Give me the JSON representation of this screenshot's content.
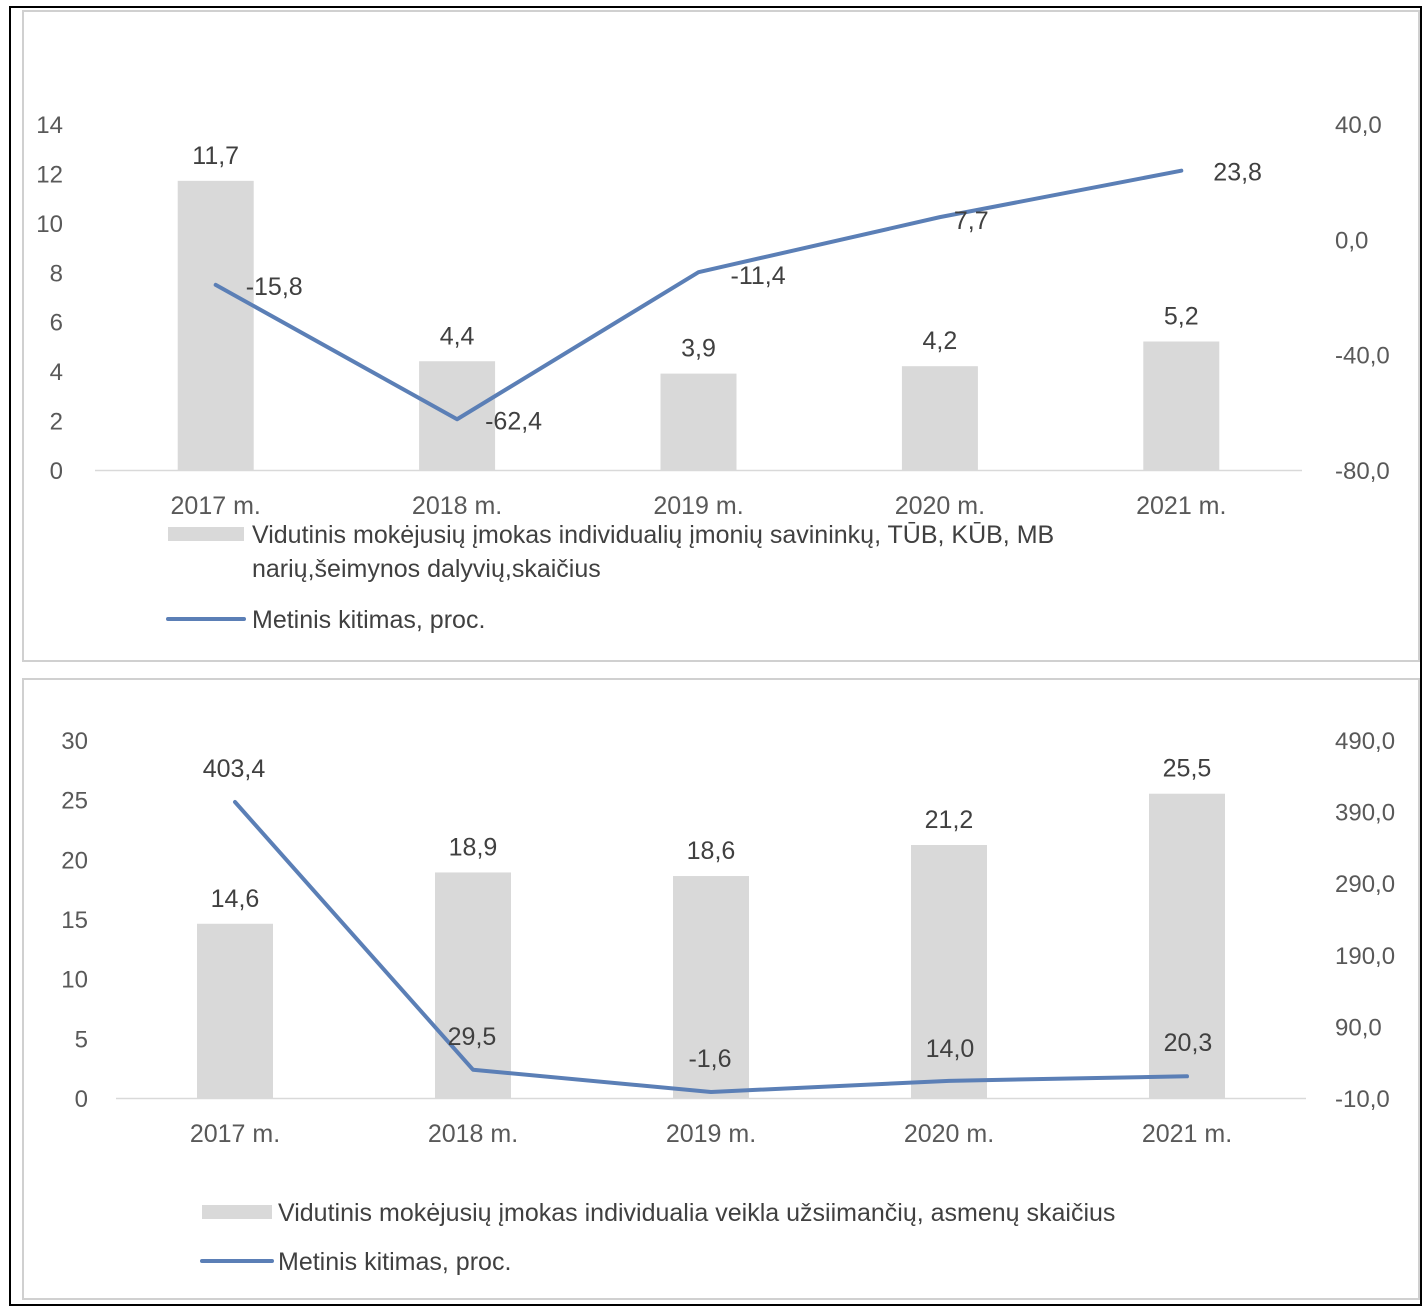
{
  "chart_data": [
    {
      "type": "bar",
      "categories": [
        "2017 m.",
        "2018 m.",
        "2019 m.",
        "2020 m.",
        "2021 m."
      ],
      "series": [
        {
          "name": "Vidutinis mokėjusių įmokas  individualių įmonių savininkų, TŪB, KŪB, MB narių,šeimynos dalyvių,skaičius",
          "name_lines": [
            "Vidutinis mokėjusių įmokas  individualių įmonių savininkų, TŪB, KŪB, MB",
            "narių,šeimynos dalyvių,skaičius"
          ],
          "chart_type": "bar",
          "axis": "left",
          "values": [
            11.7,
            4.4,
            3.9,
            4.2,
            5.2
          ],
          "labels": [
            "11,7",
            "4,4",
            "3,9",
            "4,2",
            "5,2"
          ],
          "color": "#d9d9d9"
        },
        {
          "name": "Metinis kitimas, proc.",
          "name_lines": [
            "Metinis kitimas, proc."
          ],
          "chart_type": "line",
          "axis": "right",
          "values": [
            -15.8,
            -62.4,
            -11.4,
            7.7,
            23.8
          ],
          "labels": [
            "-15,8",
            "-62,4",
            "-11,4",
            "7,7",
            "23,8"
          ],
          "color": "#5b7fb6"
        }
      ],
      "ylim_left": [
        0,
        14
      ],
      "yticks_left": [
        "0",
        "2",
        "4",
        "6",
        "8",
        "10",
        "12",
        "14"
      ],
      "ylim_right": [
        -80,
        40
      ],
      "yticks_right": [
        "-80,0",
        "-40,0",
        "0,0",
        "40,0"
      ],
      "legend": "bottom",
      "grid": false
    },
    {
      "type": "bar",
      "categories": [
        "2017 m.",
        "2018 m.",
        "2019 m.",
        "2020 m.",
        "2021 m."
      ],
      "series": [
        {
          "name": "Vidutinis mokėjusių įmokas individualia veikla užsiimančių, asmenų  skaičius",
          "name_lines": [
            "Vidutinis mokėjusių įmokas individualia veikla užsiimančių, asmenų  skaičius"
          ],
          "chart_type": "bar",
          "axis": "left",
          "values": [
            14.6,
            18.9,
            18.6,
            21.2,
            25.5
          ],
          "labels": [
            "14,6",
            "18,9",
            "18,6",
            "21,2",
            "25,5"
          ],
          "color": "#d9d9d9"
        },
        {
          "name": "Metinis kitimas, proc.",
          "name_lines": [
            "Metinis kitimas, proc."
          ],
          "chart_type": "line",
          "axis": "right",
          "values": [
            403.4,
            29.5,
            -1.6,
            14.0,
            20.3
          ],
          "labels": [
            "403,4",
            "29,5",
            "-1,6",
            "14,0",
            "20,3"
          ],
          "color": "#5b7fb6"
        }
      ],
      "ylim_left": [
        0,
        30
      ],
      "yticks_left": [
        "0",
        "5",
        "10",
        "15",
        "20",
        "25",
        "30"
      ],
      "ylim_right": [
        -10,
        490
      ],
      "yticks_right": [
        "-10,0",
        "90,0",
        "190,0",
        "290,0",
        "390,0",
        "490,0"
      ],
      "legend": "bottom",
      "grid": false
    }
  ]
}
